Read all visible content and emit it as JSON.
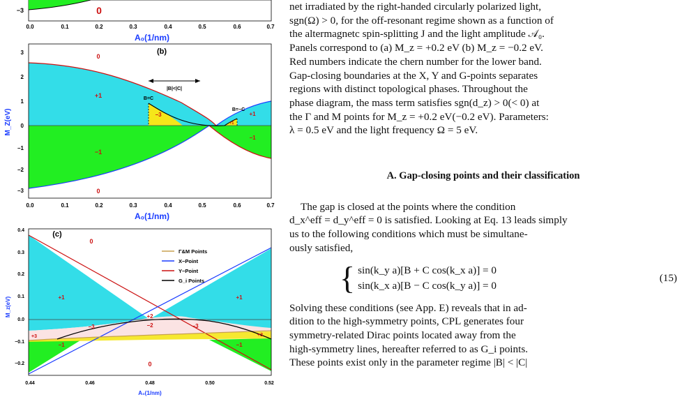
{
  "figure": {
    "panel_a_bottom": {
      "ytick": "−3",
      "chern": "0",
      "xticks": [
        "0.0",
        "0.1",
        "0.2",
        "0.3",
        "0.4",
        "0.5",
        "0.6",
        "0.7"
      ],
      "xlabel": "A₀(1/nm)"
    },
    "panel_b": {
      "label": "(b)",
      "yticks": [
        "−3",
        "−2",
        "−1",
        "0",
        "1",
        "2",
        "3"
      ],
      "xticks": [
        "0.0",
        "0.1",
        "0.2",
        "0.3",
        "0.4",
        "0.5",
        "0.6",
        "0.7"
      ],
      "ylabel": "M_Z(eV)",
      "xlabel": "A₀(1/nm)",
      "chern_top": "0",
      "chern_plus": "+1",
      "chern_minus": "−1",
      "chern_bottom": "0",
      "chern_small_left": "−3",
      "chern_small_right": "+1",
      "chern_right_plus": "+1",
      "chern_right_minus": "−1",
      "arrow_label": "|B|<|C|",
      "bc_left": "B=C",
      "bc_right": "B=−C"
    },
    "panel_c": {
      "label": "(c)",
      "yticks": [
        "0.4",
        "0.3",
        "0.2",
        "0.1",
        "0.0",
        "−0.1",
        "−0.2"
      ],
      "xticks": [
        "0.44",
        "0.46",
        "0.48",
        "0.50",
        "0.52"
      ],
      "ylabel": "M_z(eV)",
      "xlabel": "A₀(1/nm)",
      "legend": [
        "Γ&M Points",
        "X−Point",
        "Y−Point",
        "G_i Points"
      ],
      "chern_top": "0",
      "chern_left_plus": "+1",
      "chern_right_plus": "+1",
      "chern_center_plus2": "+2",
      "chern_minus3_left": "−3",
      "chern_minus2": "−2",
      "chern_minus3_right": "−3",
      "chern_plus3_left": "+3",
      "chern_plus3_right": "+3",
      "chern_minus1_left": "−1",
      "chern_minus1_right": "−1",
      "chern_bottom": "0"
    },
    "colors": {
      "cyan": "#33dde8",
      "green": "#22ee22",
      "yellow": "#f5e61a",
      "pink": "#fbe3e3",
      "red": "#cc1111",
      "blue": "#1a3cff",
      "brown": "#c8a050",
      "black": "#000000"
    }
  },
  "text": {
    "caption_lines": [
      "net irradiated by the right-handed circularly polarized light,",
      "sgn(Ω) > 0, for the off-resonant regime shown as a function of",
      "the altermagnetc spin-splitting J and the light amplitude 𝒜₀.",
      "Panels correspond to (a) M_z = +0.2 eV (b) M_z = −0.2 eV.",
      "Red numbers indicate the chern number for the lower band.",
      "Gap-closing boundaries at the X, Y and G-points separates",
      "regions with distinct topological phases.  Throughout the",
      "phase diagram, the mass term satisfies sgn(d_z) > 0(< 0) at",
      "the Γ and M points for M_z = +0.2 eV(−0.2 eV). Parameters:",
      "λ = 0.5 eV and the light frequency Ω = 5 eV."
    ],
    "section_heading": "A.   Gap-closing points and their classification",
    "para1_lines": [
      "The gap is closed at the points where the condition",
      "d_x^eff = d_y^eff = 0 is satisfied. Looking at Eq. 13 leads simply",
      "us to the following conditions which must be simultane-",
      "ously satisfied,"
    ],
    "eq_line1": "sin(k_y a)[B + C cos(k_x a)] = 0",
    "eq_line2": "sin(k_x a)[B − C cos(k_y a)] = 0",
    "eq_number": "(15)",
    "para2_lines": [
      "Solving these conditions (see App. E) reveals that in ad-",
      "dition to the high-symmetry points, CPL generates four",
      "symmetry-related Dirac points located away from the",
      "high-symmetry lines, hereafter referred to as G_i points.",
      "These points exist only in the parameter regime |B| < |C|"
    ]
  }
}
